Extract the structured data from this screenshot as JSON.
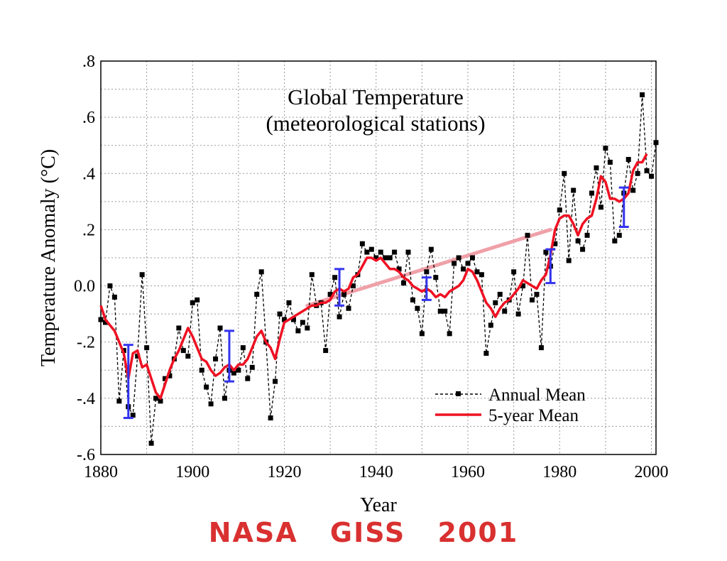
{
  "chart_data": {
    "type": "line",
    "title": "Global Temperature",
    "subtitle": "(meteorological stations)",
    "xlabel": "Year",
    "ylabel": "Temperature Anomaly (°C)",
    "xlim": [
      1880,
      2001
    ],
    "ylim": [
      -0.6,
      0.8
    ],
    "x_ticks": [
      1880,
      1900,
      1920,
      1940,
      1960,
      1980,
      2000
    ],
    "x_tick_labels": [
      "1880",
      "1900",
      "1920",
      "1940",
      "1960",
      "1980",
      "2000"
    ],
    "y_ticks": [
      -0.6,
      -0.4,
      -0.2,
      0.0,
      0.2,
      0.4,
      0.6,
      0.8
    ],
    "y_tick_labels": [
      "-.6",
      "-.4",
      "-.2",
      "0.0",
      ".2",
      ".4",
      ".6",
      ".8"
    ],
    "grid": true,
    "legend_position": "bottom-right",
    "series": [
      {
        "name": "Annual Mean",
        "color": "#000000",
        "style": "dashed-with-square-markers",
        "x": [
          1880,
          1881,
          1882,
          1883,
          1884,
          1885,
          1886,
          1887,
          1888,
          1889,
          1890,
          1891,
          1892,
          1893,
          1894,
          1895,
          1896,
          1897,
          1898,
          1899,
          1900,
          1901,
          1902,
          1903,
          1904,
          1905,
          1906,
          1907,
          1908,
          1909,
          1910,
          1911,
          1912,
          1913,
          1914,
          1915,
          1916,
          1917,
          1918,
          1919,
          1920,
          1921,
          1922,
          1923,
          1924,
          1925,
          1926,
          1927,
          1928,
          1929,
          1930,
          1931,
          1932,
          1933,
          1934,
          1935,
          1936,
          1937,
          1938,
          1939,
          1940,
          1941,
          1942,
          1943,
          1944,
          1945,
          1946,
          1947,
          1948,
          1949,
          1950,
          1951,
          1952,
          1953,
          1954,
          1955,
          1956,
          1957,
          1958,
          1959,
          1960,
          1961,
          1962,
          1963,
          1964,
          1965,
          1966,
          1967,
          1968,
          1969,
          1970,
          1971,
          1972,
          1973,
          1974,
          1975,
          1976,
          1977,
          1978,
          1979,
          1980,
          1981,
          1982,
          1983,
          1984,
          1985,
          1986,
          1987,
          1988,
          1989,
          1990,
          1991,
          1992,
          1993,
          1994,
          1995,
          1996,
          1997,
          1998,
          1999,
          2000,
          2001
        ],
        "values": [
          -0.12,
          -0.13,
          0.0,
          -0.04,
          -0.41,
          -0.23,
          -0.43,
          -0.46,
          -0.25,
          0.04,
          -0.22,
          -0.56,
          -0.4,
          -0.41,
          -0.33,
          -0.32,
          -0.26,
          -0.15,
          -0.23,
          -0.25,
          -0.06,
          -0.05,
          -0.3,
          -0.36,
          -0.42,
          -0.26,
          -0.15,
          -0.4,
          -0.3,
          -0.31,
          -0.3,
          -0.22,
          -0.33,
          -0.29,
          -0.03,
          0.05,
          -0.2,
          -0.47,
          -0.34,
          -0.1,
          -0.12,
          -0.06,
          -0.12,
          -0.16,
          -0.13,
          -0.15,
          0.04,
          -0.07,
          -0.06,
          -0.23,
          -0.03,
          0.03,
          -0.11,
          -0.03,
          -0.08,
          0.0,
          0.04,
          0.15,
          0.12,
          0.13,
          0.1,
          0.12,
          0.1,
          0.1,
          0.12,
          0.06,
          0.01,
          0.12,
          -0.05,
          -0.08,
          -0.17,
          0.05,
          0.13,
          0.03,
          -0.09,
          -0.09,
          -0.17,
          0.08,
          0.1,
          0.06,
          0.08,
          0.1,
          0.05,
          0.04,
          -0.24,
          -0.14,
          -0.06,
          -0.03,
          -0.09,
          -0.05,
          0.05,
          -0.1,
          0.0,
          0.18,
          -0.05,
          -0.03,
          -0.22,
          0.12,
          0.07,
          0.15,
          0.27,
          0.4,
          0.09,
          0.34,
          0.16,
          0.13,
          0.18,
          0.33,
          0.42,
          0.28,
          0.49,
          0.44,
          0.16,
          0.18,
          0.33,
          0.45,
          0.34,
          0.4,
          0.68,
          0.41,
          0.39,
          0.51
        ]
      },
      {
        "name": "5-year Mean",
        "color": "#ee1122",
        "style": "solid",
        "x": [
          1880,
          1881,
          1882,
          1883,
          1884,
          1885,
          1886,
          1887,
          1888,
          1889,
          1890,
          1891,
          1892,
          1893,
          1894,
          1895,
          1896,
          1897,
          1898,
          1899,
          1900,
          1901,
          1902,
          1903,
          1904,
          1905,
          1906,
          1907,
          1908,
          1909,
          1910,
          1911,
          1912,
          1913,
          1914,
          1915,
          1916,
          1917,
          1918,
          1919,
          1920,
          1921,
          1922,
          1923,
          1924,
          1925,
          1926,
          1927,
          1928,
          1929,
          1930,
          1931,
          1932,
          1933,
          1934,
          1935,
          1936,
          1937,
          1938,
          1939,
          1940,
          1941,
          1942,
          1943,
          1944,
          1945,
          1946,
          1947,
          1948,
          1949,
          1950,
          1951,
          1952,
          1953,
          1954,
          1955,
          1956,
          1957,
          1958,
          1959,
          1960,
          1961,
          1962,
          1963,
          1964,
          1965,
          1966,
          1967,
          1968,
          1969,
          1970,
          1971,
          1972,
          1973,
          1974,
          1975,
          1976,
          1977,
          1978,
          1979,
          1980,
          1981,
          1982,
          1983,
          1984,
          1985,
          1986,
          1987,
          1988,
          1989,
          1990,
          1991,
          1992,
          1993,
          1994,
          1995,
          1996,
          1997,
          1998,
          1999
        ],
        "values": [
          -0.07,
          -0.12,
          -0.14,
          -0.16,
          -0.2,
          -0.24,
          -0.33,
          -0.24,
          -0.23,
          -0.29,
          -0.28,
          -0.33,
          -0.38,
          -0.4,
          -0.35,
          -0.3,
          -0.26,
          -0.23,
          -0.19,
          -0.15,
          -0.18,
          -0.22,
          -0.26,
          -0.27,
          -0.3,
          -0.32,
          -0.31,
          -0.29,
          -0.28,
          -0.3,
          -0.28,
          -0.28,
          -0.26,
          -0.22,
          -0.18,
          -0.16,
          -0.2,
          -0.22,
          -0.26,
          -0.19,
          -0.13,
          -0.12,
          -0.11,
          -0.1,
          -0.09,
          -0.08,
          -0.07,
          -0.07,
          -0.06,
          -0.06,
          -0.05,
          -0.02,
          -0.01,
          -0.02,
          -0.01,
          0.03,
          0.04,
          0.07,
          0.1,
          0.1,
          0.09,
          0.1,
          0.08,
          0.06,
          0.06,
          0.05,
          0.03,
          0.02,
          0.0,
          -0.01,
          -0.02,
          -0.01,
          -0.02,
          -0.04,
          -0.03,
          -0.04,
          -0.02,
          -0.01,
          0.0,
          0.02,
          0.06,
          0.05,
          0.02,
          -0.02,
          -0.06,
          -0.08,
          -0.11,
          -0.08,
          -0.06,
          -0.05,
          -0.03,
          -0.01,
          0.02,
          0.01,
          0.0,
          -0.01,
          0.02,
          0.04,
          0.11,
          0.2,
          0.24,
          0.25,
          0.25,
          0.22,
          0.18,
          0.22,
          0.24,
          0.25,
          0.31,
          0.39,
          0.37,
          0.31,
          0.31,
          0.3,
          0.31,
          0.33,
          0.41,
          0.44,
          0.44,
          0.47
        ]
      }
    ],
    "trend_line": {
      "color": "#f0a0a8",
      "x": [
        1925,
        1978
      ],
      "y": [
        -0.07,
        0.2
      ]
    },
    "error_bars": {
      "color": "#3333ee",
      "points": [
        {
          "x": 1886,
          "y": -0.33,
          "low": -0.47,
          "high": -0.21
        },
        {
          "x": 1908,
          "y": -0.28,
          "low": -0.34,
          "high": -0.16
        },
        {
          "x": 1932,
          "y": 0.0,
          "low": -0.07,
          "high": 0.06
        },
        {
          "x": 1951,
          "y": 0.0,
          "low": -0.05,
          "high": 0.03
        },
        {
          "x": 1978,
          "y": 0.08,
          "low": 0.01,
          "high": 0.13
        },
        {
          "x": 1994,
          "y": 0.3,
          "low": 0.21,
          "high": 0.35
        }
      ]
    }
  },
  "footer": {
    "text": "NASA GISS 2001",
    "color": "#d93030"
  }
}
